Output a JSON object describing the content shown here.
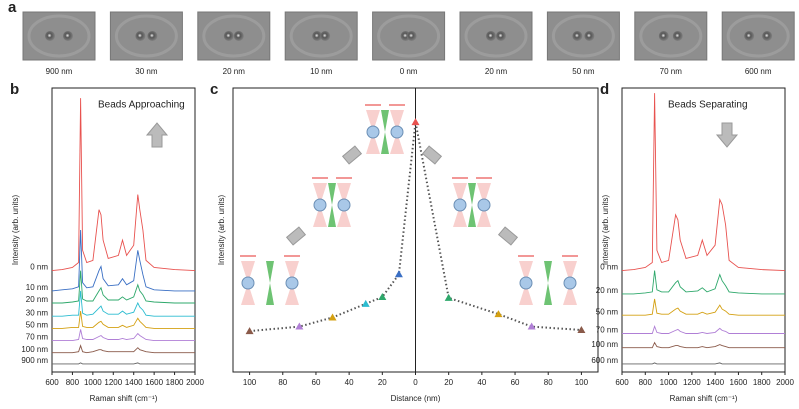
{
  "panel_a": {
    "label": "a",
    "images": [
      {
        "label": "900 nm"
      },
      {
        "label": "30 nm"
      },
      {
        "label": "20 nm"
      },
      {
        "label": "10 nm"
      },
      {
        "label": "0 nm"
      },
      {
        "label": "20 nm"
      },
      {
        "label": "50 nm"
      },
      {
        "label": "70 nm"
      },
      {
        "label": "600 nm"
      }
    ]
  },
  "chart_data": [
    {
      "type": "line",
      "label": "b",
      "annotation": "Beads Approaching",
      "annotation_arrow": "up",
      "xlabel": "Raman shift (cm⁻¹)",
      "ylabel": "Intensity (arb. units)",
      "xlim": [
        600,
        2000
      ],
      "xticks": [
        600,
        800,
        1000,
        1200,
        1400,
        1600,
        1800,
        2000
      ],
      "ylim": [
        0,
        28
      ],
      "x": [
        600,
        700,
        800,
        860,
        880,
        900,
        940,
        1000,
        1060,
        1080,
        1100,
        1150,
        1250,
        1290,
        1330,
        1400,
        1440,
        1460,
        1490,
        1520,
        1600,
        1800,
        2000
      ],
      "series": [
        {
          "name": "0 nm",
          "color": "#e8524f",
          "values": [
            10,
            10.1,
            10.3,
            10.8,
            27,
            12,
            10.8,
            11,
            16,
            15.5,
            13,
            11.2,
            11.5,
            13,
            11.5,
            12.5,
            17.5,
            16,
            14,
            11,
            10.3,
            10.1,
            10
          ]
        },
        {
          "name": "10 nm",
          "color": "#3a6fc4",
          "values": [
            8,
            8.1,
            8.2,
            8.4,
            14,
            8.8,
            8.3,
            8.4,
            10,
            10.4,
            9.2,
            8.5,
            8.6,
            9.2,
            8.6,
            9,
            12,
            11,
            9.6,
            8.4,
            8.1,
            8,
            8
          ]
        },
        {
          "name": "20 nm",
          "color": "#2ea86b",
          "values": [
            6.8,
            6.8,
            6.9,
            7,
            10,
            7.2,
            7,
            7,
            8,
            8.3,
            7.6,
            7.1,
            7.1,
            7.4,
            7.1,
            7.4,
            8.6,
            8,
            7.6,
            7,
            6.9,
            6.8,
            6.8
          ]
        },
        {
          "name": "30 nm",
          "color": "#2bbcd0",
          "values": [
            5.5,
            5.5,
            5.6,
            5.6,
            8,
            5.8,
            5.6,
            5.7,
            6.3,
            6.5,
            6,
            5.7,
            5.7,
            6,
            5.7,
            5.9,
            6.8,
            6.4,
            6.1,
            5.6,
            5.5,
            5.5,
            5.5
          ]
        },
        {
          "name": "50 nm",
          "color": "#d4a012",
          "values": [
            4.3,
            4.3,
            4.4,
            4.4,
            6,
            4.5,
            4.4,
            4.4,
            4.9,
            5,
            4.7,
            4.4,
            4.4,
            4.6,
            4.4,
            4.6,
            5.3,
            5,
            4.7,
            4.4,
            4.3,
            4.3,
            4.3
          ]
        },
        {
          "name": "70 nm",
          "color": "#b07fd6",
          "values": [
            3.1,
            3.1,
            3.1,
            3.2,
            4.2,
            3.3,
            3.2,
            3.2,
            3.5,
            3.6,
            3.4,
            3.2,
            3.2,
            3.3,
            3.2,
            3.3,
            3.8,
            3.6,
            3.4,
            3.2,
            3.1,
            3.1,
            3.1
          ]
        },
        {
          "name": "100 nm",
          "color": "#8a5a4a",
          "values": [
            1.9,
            1.9,
            1.9,
            2,
            2.6,
            2,
            1.9,
            2,
            2.2,
            2.2,
            2.1,
            2,
            2,
            2,
            2,
            2,
            2.4,
            2.2,
            2.1,
            2,
            1.9,
            1.9,
            1.9
          ]
        },
        {
          "name": "900 nm",
          "color": "#666666",
          "values": [
            0.8,
            0.8,
            0.8,
            0.8,
            0.9,
            0.8,
            0.8,
            0.8,
            0.8,
            0.8,
            0.8,
            0.8,
            0.8,
            0.8,
            0.8,
            0.8,
            0.9,
            0.8,
            0.8,
            0.8,
            0.8,
            0.8,
            0.8
          ]
        }
      ]
    },
    {
      "type": "scatter",
      "label": "c",
      "xlabel": "Distance (nm)",
      "ylabel": "Intensity (arb. units)",
      "xlim": [
        -110,
        110
      ],
      "ylim": [
        -0.15,
        1.1
      ],
      "xticks": [
        {
          "value": -100,
          "label": "100"
        },
        {
          "value": -80,
          "label": "80"
        },
        {
          "value": -60,
          "label": "60"
        },
        {
          "value": -40,
          "label": "40"
        },
        {
          "value": -20,
          "label": "20"
        },
        0,
        20,
        40,
        60,
        80,
        100
      ],
      "x": [
        -100,
        -70,
        -50,
        -30,
        -20,
        -10,
        0,
        20,
        50,
        70,
        100
      ],
      "values": [
        0.03,
        0.05,
        0.09,
        0.15,
        0.18,
        0.28,
        0.95,
        0.176,
        0.105,
        0.05,
        0.035
      ],
      "colors": [
        "#8a5a4a",
        "#b07fd6",
        "#d4a012",
        "#2bbcd0",
        "#2ea86b",
        "#3a6fc4",
        "#e8524f",
        "#2ea86b",
        "#d4a012",
        "#b07fd6",
        "#8a5a4a"
      ],
      "line_color": "#555555"
    },
    {
      "type": "line",
      "label": "d",
      "annotation": "Beads Separating",
      "annotation_arrow": "down",
      "xlabel": "Raman shift (cm⁻¹)",
      "ylabel": "Intensity (arb. units)",
      "xlim": [
        600,
        2000
      ],
      "xticks": [
        600,
        800,
        1000,
        1200,
        1400,
        1600,
        1800,
        2000
      ],
      "ylim": [
        0,
        28
      ],
      "x": [
        600,
        700,
        800,
        860,
        880,
        900,
        940,
        1000,
        1060,
        1080,
        1100,
        1150,
        1250,
        1290,
        1330,
        1400,
        1440,
        1460,
        1490,
        1520,
        1600,
        1800,
        2000
      ],
      "series": [
        {
          "name": "0 nm",
          "color": "#e8524f",
          "values": [
            10,
            10.1,
            10.3,
            10.8,
            27.5,
            12,
            10.8,
            11,
            15.5,
            15,
            13,
            11.2,
            11.5,
            13,
            11.5,
            12.5,
            17,
            16.5,
            14.5,
            11,
            10.3,
            10.1,
            10
          ]
        },
        {
          "name": "20 nm",
          "color": "#2ea86b",
          "values": [
            7.7,
            7.7,
            7.8,
            7.9,
            10,
            8.1,
            7.9,
            7.9,
            8.8,
            9,
            8.4,
            7.9,
            8,
            8.3,
            7.9,
            8.2,
            9.6,
            9,
            8.5,
            7.9,
            7.8,
            7.7,
            7.7
          ]
        },
        {
          "name": "50 nm",
          "color": "#d4a012",
          "values": [
            5.6,
            5.6,
            5.6,
            5.7,
            7.2,
            5.8,
            5.7,
            5.7,
            6.2,
            6.3,
            6,
            5.7,
            5.7,
            5.9,
            5.7,
            5.9,
            6.6,
            6.2,
            6,
            5.7,
            5.6,
            5.6,
            5.6
          ]
        },
        {
          "name": "70 nm",
          "color": "#b07fd6",
          "values": [
            3.8,
            3.8,
            3.8,
            3.8,
            4.5,
            3.9,
            3.8,
            3.8,
            4.1,
            4.2,
            4,
            3.8,
            3.8,
            3.9,
            3.8,
            3.9,
            4.3,
            4.1,
            4,
            3.8,
            3.8,
            3.8,
            3.8
          ]
        },
        {
          "name": "100 nm",
          "color": "#8a5a4a",
          "values": [
            2.4,
            2.4,
            2.4,
            2.4,
            2.9,
            2.5,
            2.4,
            2.4,
            2.6,
            2.6,
            2.5,
            2.4,
            2.4,
            2.5,
            2.4,
            2.5,
            2.7,
            2.6,
            2.5,
            2.4,
            2.4,
            2.4,
            2.4
          ]
        },
        {
          "name": "600 nm",
          "color": "#666666",
          "values": [
            0.8,
            0.8,
            0.8,
            0.8,
            0.9,
            0.8,
            0.8,
            0.8,
            0.8,
            0.8,
            0.8,
            0.8,
            0.8,
            0.8,
            0.8,
            0.8,
            0.9,
            0.8,
            0.8,
            0.8,
            0.8,
            0.8,
            0.8
          ]
        }
      ]
    }
  ]
}
